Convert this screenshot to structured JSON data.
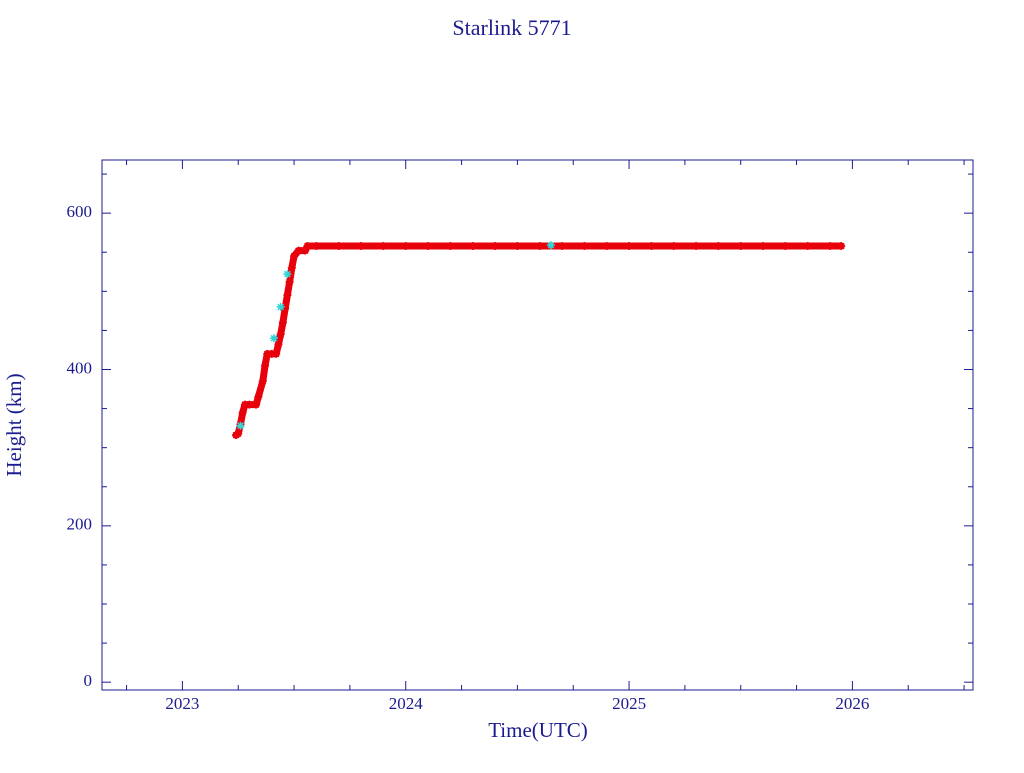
{
  "chart_data": {
    "type": "line",
    "title": "Starlink 5771",
    "xlabel": "Time(UTC)",
    "ylabel": "Height (km)",
    "xlim": [
      2022.64,
      2026.54
    ],
    "ylim": [
      -10,
      668
    ],
    "xticks": [
      2023,
      2024,
      2025,
      2026
    ],
    "yticks": [
      0,
      200,
      400,
      600
    ],
    "xminorticks": [
      2022.75,
      2023.25,
      2023.5,
      2023.75,
      2024.25,
      2024.5,
      2024.75,
      2025.25,
      2025.5,
      2025.75,
      2026.25,
      2026.5
    ],
    "yminorticks": [
      50,
      100,
      150,
      250,
      300,
      350,
      450,
      500,
      550,
      650
    ],
    "series": [
      {
        "color": "#e8000b",
        "mode": "lines+markers",
        "x": [
          2023.24,
          2023.25,
          2023.26,
          2023.27,
          2023.28,
          2023.3,
          2023.33,
          2023.34,
          2023.36,
          2023.37,
          2023.38,
          2023.4,
          2023.42,
          2023.43,
          2023.44,
          2023.45,
          2023.46,
          2023.47,
          2023.48,
          2023.49,
          2023.5,
          2023.52,
          2023.55,
          2023.56,
          2023.6,
          2023.7,
          2023.8,
          2023.9,
          2024.0,
          2024.1,
          2024.2,
          2024.3,
          2024.4,
          2024.5,
          2024.6,
          2024.7,
          2024.8,
          2024.9,
          2025.0,
          2025.1,
          2025.2,
          2025.3,
          2025.4,
          2025.5,
          2025.6,
          2025.7,
          2025.8,
          2025.9,
          2025.95
        ],
        "values": [
          316,
          318,
          330,
          345,
          355,
          355,
          355,
          365,
          385,
          405,
          420,
          420,
          420,
          432,
          445,
          460,
          478,
          495,
          512,
          530,
          545,
          552,
          552,
          558,
          558,
          558,
          558,
          558,
          558,
          558,
          558,
          558,
          558,
          558,
          558,
          558,
          558,
          558,
          558,
          558,
          558,
          558,
          558,
          558,
          558,
          558,
          558,
          558,
          558
        ]
      },
      {
        "color": "#33d6d6",
        "mode": "markers",
        "x": [
          2023.26,
          2023.41,
          2023.44,
          2023.47,
          2024.65
        ],
        "values": [
          328,
          440,
          480,
          522,
          559
        ]
      }
    ]
  }
}
